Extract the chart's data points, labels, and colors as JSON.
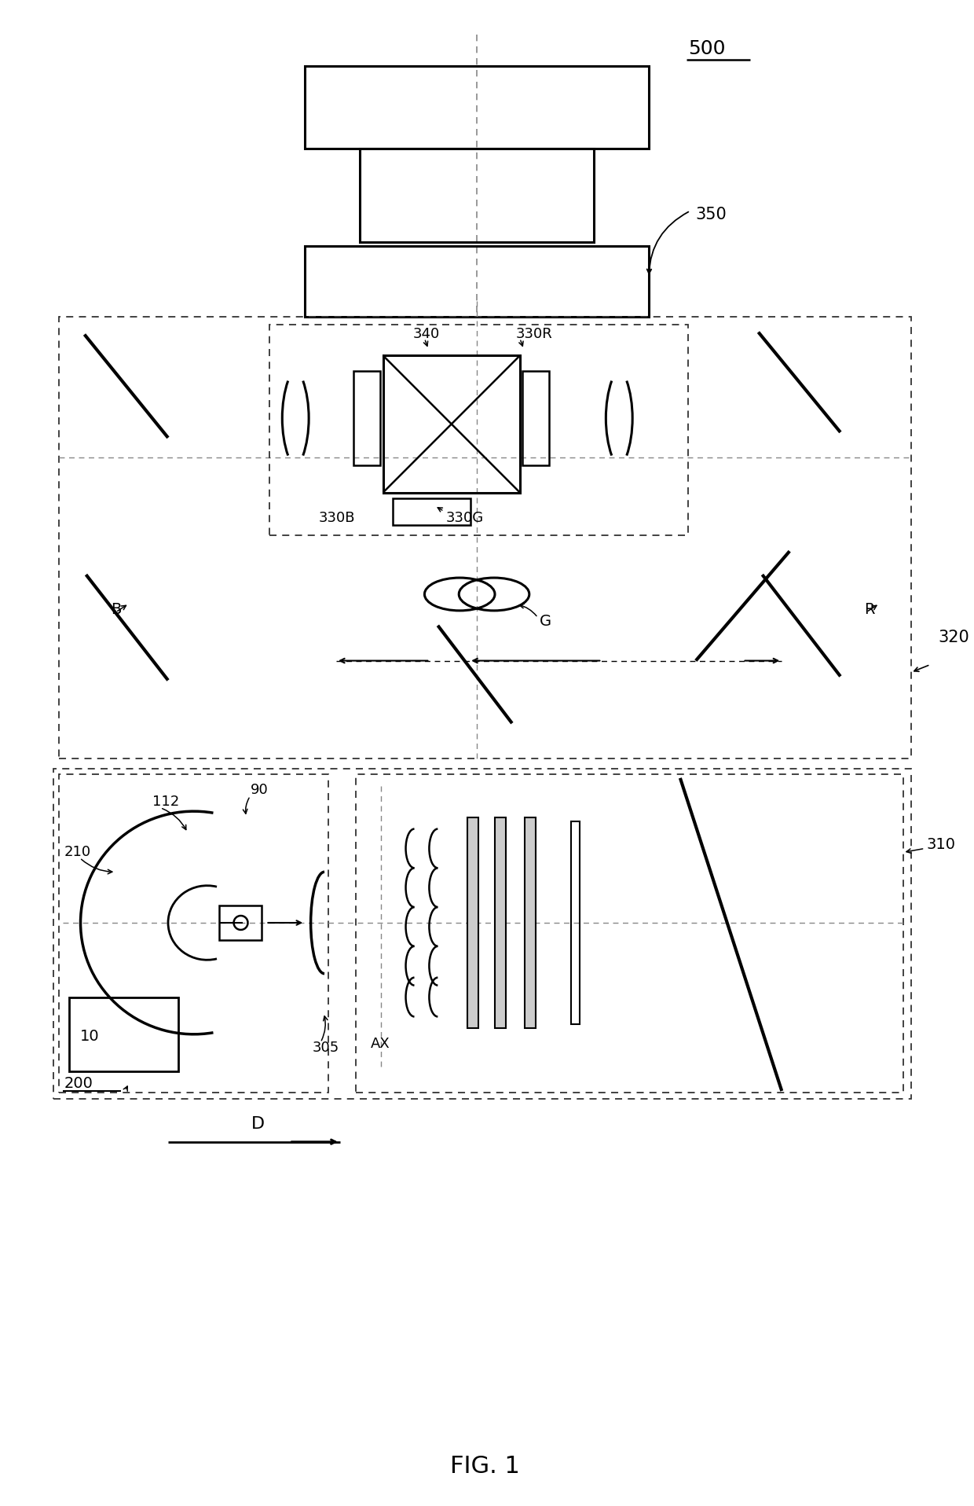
{
  "bg_color": "#ffffff",
  "lc": "#000000",
  "fig_label": "FIG. 1",
  "label_500": "500",
  "label_350": "350",
  "label_340": "340",
  "label_330R": "330R",
  "label_330B": "330B",
  "label_330G": "330G",
  "label_320": "320",
  "label_310": "310",
  "label_B": "B",
  "label_R": "R",
  "label_G": "G",
  "label_210": "210",
  "label_112": "112",
  "label_90": "90",
  "label_10": "10",
  "label_200": "200",
  "label_305": "305",
  "label_AX": "AX",
  "label_D": "D"
}
